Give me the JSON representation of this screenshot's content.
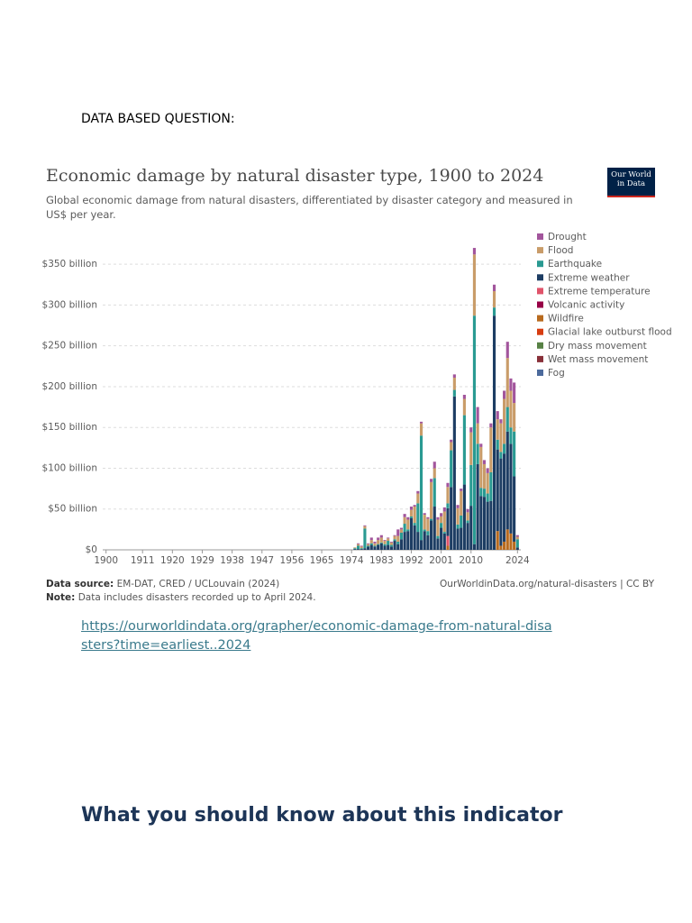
{
  "question": "DATA BASED QUESTION:",
  "chart_data": {
    "type": "bar",
    "title": "Economic damage by natural disaster type, 1900 to 2024",
    "subtitle": "Global economic damage from natural disasters, differentiated by disaster category and measured in US$ per year.",
    "logo": [
      "Our World",
      "in Data"
    ],
    "source_label": "Data source:",
    "source": "EM-DAT, CRED / UCLouvain (2024)",
    "note_label": "Note:",
    "note": "Data includes disasters recorded up to April 2024.",
    "credit": "OurWorldinData.org/natural-disasters | CC BY",
    "stacked": true,
    "grid": true,
    "xlim": [
      1899,
      2025
    ],
    "xticks": [
      1900,
      1911,
      1920,
      1929,
      1938,
      1947,
      1956,
      1965,
      1974,
      1983,
      1992,
      2001,
      2010,
      2024
    ],
    "ylim": [
      0,
      380
    ],
    "yticks": [
      {
        "value": 0,
        "label": "$0"
      },
      {
        "value": 50,
        "label": "$50 billion"
      },
      {
        "value": 100,
        "label": "$100 billion"
      },
      {
        "value": 150,
        "label": "$150 billion"
      },
      {
        "value": 200,
        "label": "$200 billion"
      },
      {
        "value": 250,
        "label": "$250 billion"
      },
      {
        "value": 300,
        "label": "$300 billion"
      },
      {
        "value": 350,
        "label": "$350 billion"
      }
    ],
    "x": [
      1975,
      1976,
      1977,
      1978,
      1979,
      1980,
      1981,
      1982,
      1983,
      1984,
      1985,
      1986,
      1987,
      1988,
      1989,
      1990,
      1991,
      1992,
      1993,
      1994,
      1995,
      1996,
      1997,
      1998,
      1999,
      2000,
      2001,
      2002,
      2003,
      2004,
      2005,
      2006,
      2007,
      2008,
      2009,
      2010,
      2011,
      2012,
      2013,
      2014,
      2015,
      2016,
      2017,
      2018,
      2019,
      2020,
      2021,
      2022,
      2023,
      2024
    ],
    "series": [
      {
        "name": "Drought",
        "color": "#a2559c",
        "values": [
          0,
          1,
          1,
          1,
          1,
          3,
          2,
          3,
          3,
          1,
          1,
          1,
          1,
          8,
          2,
          4,
          3,
          4,
          2,
          3,
          2,
          2,
          2,
          4,
          8,
          3,
          4,
          5,
          5,
          3,
          4,
          4,
          3,
          5,
          4,
          6,
          8,
          20,
          4,
          5,
          6,
          5,
          8,
          10,
          5,
          10,
          20,
          15,
          25,
          2
        ]
      },
      {
        "name": "Flood",
        "color": "#c99c69",
        "values": [
          1,
          2,
          2,
          3,
          2,
          4,
          3,
          5,
          6,
          4,
          3,
          3,
          4,
          7,
          4,
          8,
          12,
          8,
          20,
          12,
          15,
          18,
          15,
          45,
          12,
          20,
          8,
          25,
          20,
          10,
          15,
          20,
          30,
          20,
          10,
          40,
          75,
          25,
          50,
          30,
          25,
          55,
          20,
          25,
          35,
          55,
          60,
          45,
          35,
          3
        ]
      },
      {
        "name": "Earthquake",
        "color": "#2a9a92",
        "values": [
          1,
          4,
          1,
          24,
          1,
          2,
          1,
          1,
          1,
          2,
          5,
          2,
          2,
          3,
          8,
          10,
          2,
          2,
          3,
          35,
          128,
          2,
          5,
          2,
          35,
          3,
          6,
          2,
          6,
          45,
          8,
          5,
          15,
          85,
          3,
          50,
          280,
          25,
          10,
          10,
          10,
          35,
          10,
          12,
          8,
          12,
          30,
          20,
          55,
          10
        ]
      },
      {
        "name": "Extreme weather",
        "color": "#1d3d63",
        "values": [
          1,
          1,
          1,
          2,
          4,
          6,
          4,
          6,
          8,
          5,
          6,
          4,
          11,
          7,
          13,
          22,
          23,
          39,
          30,
          22,
          12,
          23,
          18,
          36,
          53,
          14,
          27,
          20,
          34,
          77,
          188,
          26,
          27,
          80,
          33,
          54,
          7,
          105,
          66,
          65,
          59,
          60,
          287,
          100,
          107,
          108,
          120,
          110,
          80,
          3
        ]
      },
      {
        "name": "Extreme temperature",
        "color": "#e0536a",
        "values": [
          0,
          0,
          0,
          0,
          0,
          0,
          0,
          0,
          0,
          0,
          0,
          0,
          0,
          0,
          0,
          0,
          0,
          0,
          0,
          0,
          0,
          0,
          0,
          0,
          0,
          0,
          0,
          0,
          12,
          0,
          0,
          0,
          0,
          0,
          0,
          0,
          0,
          0,
          0,
          0,
          0,
          0,
          0,
          0,
          0,
          0,
          0,
          0,
          0,
          0
        ]
      },
      {
        "name": "Volcanic activity",
        "color": "#970046",
        "values": [
          0,
          0,
          0,
          0,
          0,
          0,
          0,
          0,
          0,
          0,
          0,
          0,
          0,
          0,
          0,
          0,
          0,
          0,
          0,
          0,
          0,
          0,
          0,
          0,
          0,
          0,
          0,
          0,
          0,
          0,
          0,
          0,
          0,
          0,
          0,
          0,
          0,
          0,
          0,
          0,
          0,
          0,
          0,
          0,
          0,
          0,
          0,
          0,
          0,
          0
        ]
      },
      {
        "name": "Wildfire",
        "color": "#b86a1e",
        "values": [
          0,
          0,
          0,
          0,
          0,
          0,
          0,
          0,
          0,
          0,
          0,
          0,
          0,
          0,
          0,
          0,
          0,
          0,
          0,
          0,
          0,
          0,
          0,
          0,
          0,
          0,
          0,
          0,
          5,
          0,
          0,
          0,
          0,
          0,
          0,
          0,
          0,
          0,
          0,
          0,
          0,
          0,
          0,
          23,
          5,
          10,
          25,
          20,
          10,
          0
        ]
      },
      {
        "name": "Glacial lake outburst flood",
        "color": "#d73c10",
        "values": [
          0,
          0,
          0,
          0,
          0,
          0,
          0,
          0,
          0,
          0,
          0,
          0,
          0,
          0,
          0,
          0,
          0,
          0,
          0,
          0,
          0,
          0,
          0,
          0,
          0,
          0,
          0,
          0,
          0,
          0,
          0,
          0,
          0,
          0,
          0,
          0,
          0,
          0,
          0,
          0,
          0,
          0,
          0,
          0,
          0,
          0,
          0,
          0,
          0,
          0
        ]
      },
      {
        "name": "Dry mass movement",
        "color": "#578145",
        "values": [
          0,
          0,
          0,
          0,
          0,
          0,
          0,
          0,
          0,
          0,
          0,
          0,
          0,
          0,
          0,
          0,
          0,
          0,
          0,
          0,
          0,
          0,
          0,
          0,
          0,
          0,
          0,
          0,
          0,
          0,
          0,
          0,
          0,
          0,
          0,
          0,
          0,
          0,
          0,
          0,
          0,
          0,
          0,
          0,
          0,
          0,
          0,
          0,
          0,
          0
        ]
      },
      {
        "name": "Wet mass movement",
        "color": "#883039",
        "values": [
          0,
          0,
          0,
          0,
          0,
          0,
          0,
          0,
          0,
          0,
          0,
          0,
          0,
          0,
          0,
          0,
          0,
          0,
          0,
          0,
          0,
          0,
          0,
          0,
          0,
          0,
          0,
          0,
          0,
          0,
          0,
          0,
          0,
          0,
          0,
          0,
          0,
          0,
          0,
          0,
          0,
          0,
          0,
          0,
          0,
          0,
          0,
          0,
          0,
          0
        ]
      },
      {
        "name": "Fog",
        "color": "#4c6a9c",
        "values": [
          0,
          0,
          0,
          0,
          0,
          0,
          0,
          0,
          0,
          0,
          0,
          0,
          0,
          0,
          0,
          0,
          0,
          0,
          0,
          0,
          0,
          0,
          0,
          0,
          0,
          0,
          0,
          0,
          0,
          0,
          0,
          0,
          0,
          0,
          0,
          0,
          0,
          0,
          0,
          0,
          0,
          0,
          0,
          0,
          0,
          0,
          0,
          0,
          0,
          0
        ]
      }
    ]
  },
  "link": "https://ourworldindata.org/grapher/economic-damage-from-natural-disasters?time=earliest..2024",
  "heading": "What you should know about this indicator"
}
